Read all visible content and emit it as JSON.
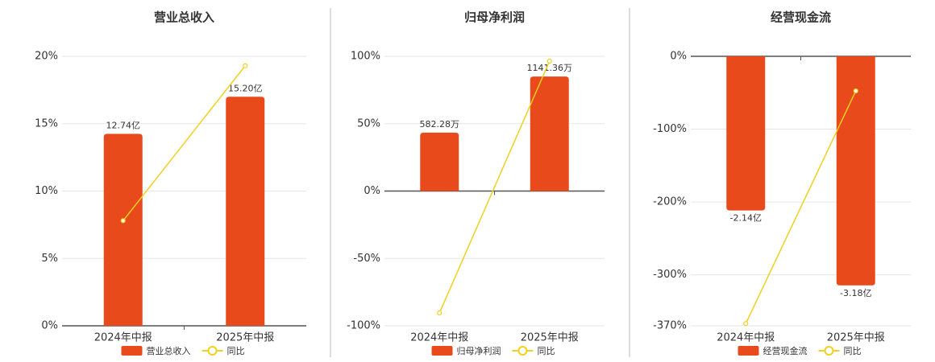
{
  "chart_data": [
    {
      "type": "combo",
      "title": "营业总收入",
      "categories": [
        "2024年中报",
        "2025年中报"
      ],
      "series": [
        {
          "name": "营业总收入",
          "type": "bar",
          "color": "#e84a1b",
          "values": [
            12.74,
            15.2
          ],
          "value_labels": [
            "12.74亿",
            "15.20亿"
          ]
        },
        {
          "name": "同比",
          "type": "line",
          "color": "#f0d020",
          "values": [
            7.8,
            19.3
          ]
        }
      ],
      "ylim": [
        0,
        20
      ],
      "yticks": [
        {
          "value": 0,
          "label": "0%"
        },
        {
          "value": 5,
          "label": "5%"
        },
        {
          "value": 10,
          "label": "10%"
        },
        {
          "value": 15,
          "label": "15%"
        },
        {
          "value": 20,
          "label": "20%"
        }
      ],
      "grid": true
    },
    {
      "type": "combo",
      "title": "归母净利润",
      "categories": [
        "2024年中报",
        "2025年中报"
      ],
      "series": [
        {
          "name": "归母净利润",
          "type": "bar",
          "color": "#e84a1b",
          "values": [
            582.28,
            1141.36
          ],
          "value_labels": [
            "582.28万",
            "1141.36万"
          ]
        },
        {
          "name": "同比",
          "type": "line",
          "color": "#f0d020",
          "values": [
            -90.4,
            96.4
          ]
        }
      ],
      "ylim": [
        -100,
        100
      ],
      "yticks": [
        {
          "value": -100,
          "label": "-100%"
        },
        {
          "value": -50,
          "label": "-50%"
        },
        {
          "value": 0,
          "label": "0%"
        },
        {
          "value": 50,
          "label": "50%"
        },
        {
          "value": 100,
          "label": "100%"
        }
      ],
      "grid": true
    },
    {
      "type": "combo",
      "title": "经营现金流",
      "categories": [
        "2024年中报",
        "2025年中报"
      ],
      "series": [
        {
          "name": "经营现金流",
          "type": "bar",
          "color": "#e84a1b",
          "values": [
            -2.14,
            -3.18
          ],
          "value_labels": [
            "-2.14亿",
            "-3.18亿"
          ]
        },
        {
          "name": "同比",
          "type": "line",
          "color": "#f0d020",
          "values": [
            -367,
            -47.5
          ]
        }
      ],
      "ylim": [
        -370,
        0
      ],
      "yticks": [
        {
          "value": -370,
          "label": "-370%"
        },
        {
          "value": -300,
          "label": "-300%"
        },
        {
          "value": -200,
          "label": "-200%"
        },
        {
          "value": -100,
          "label": "-100%"
        },
        {
          "value": 0,
          "label": "0%"
        }
      ],
      "grid": true
    }
  ]
}
